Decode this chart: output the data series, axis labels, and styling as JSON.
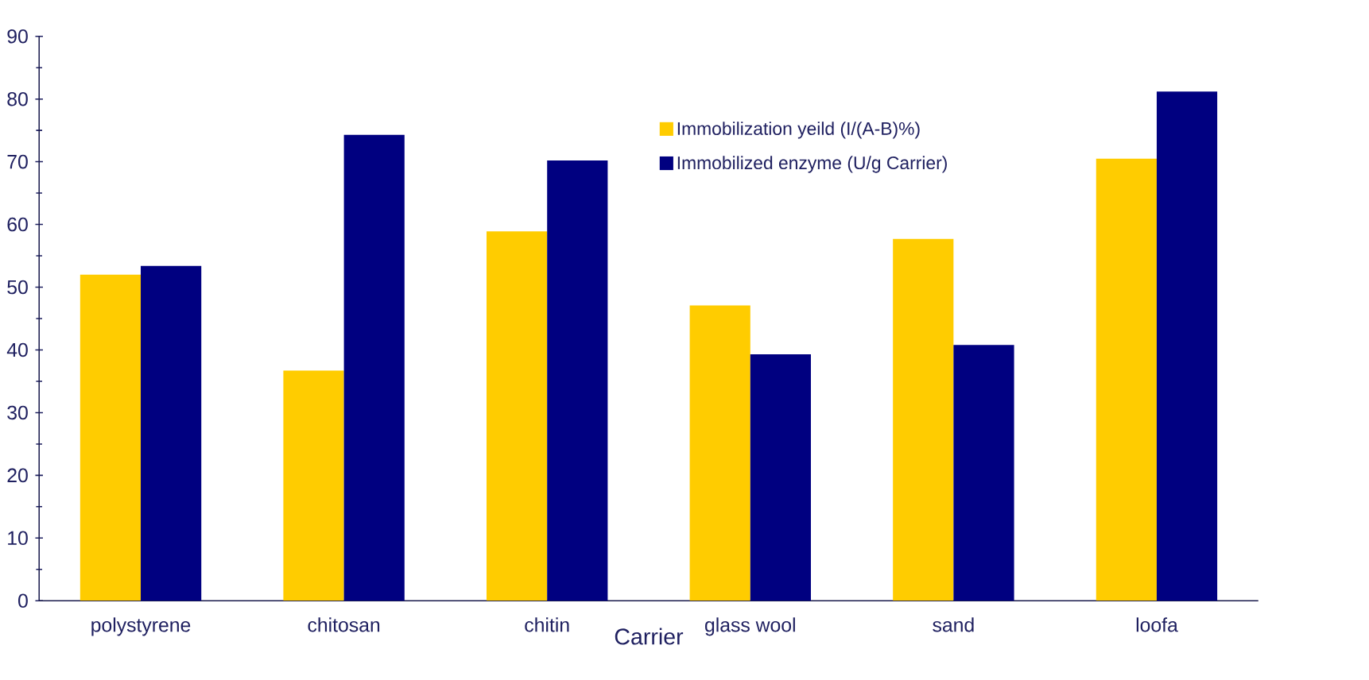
{
  "chart_data": {
    "type": "bar",
    "xlabel": "Carrier",
    "categories": [
      "polystyrene",
      "chitosan",
      "chitin",
      "glass wool",
      "sand",
      "loofa"
    ],
    "series": [
      {
        "name": "Immobilization yeild (I/(A-B)%)",
        "color": "#ffcc00",
        "values": [
          52,
          36.7,
          58.9,
          47.1,
          57.7,
          70.5
        ]
      },
      {
        "name": "Immobilized enzyme (U/g Carrier)",
        "color": "#000080",
        "values": [
          53.4,
          74.3,
          70.2,
          39.3,
          40.8,
          81.2
        ]
      }
    ],
    "ylim": [
      0,
      90
    ],
    "yticks": [
      0,
      10,
      20,
      30,
      40,
      50,
      60,
      70,
      80,
      90
    ],
    "legend": "top right"
  }
}
